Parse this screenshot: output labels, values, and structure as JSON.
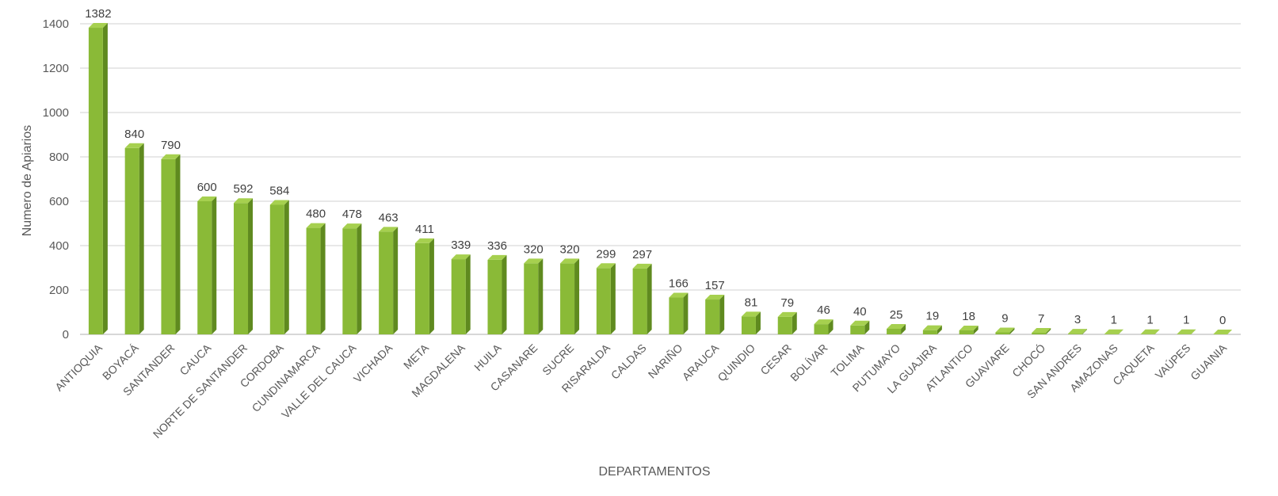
{
  "chart_data": {
    "type": "bar",
    "xlabel": "DEPARTAMENTOS",
    "ylabel": "Numero de Apiarios",
    "ylim": [
      0,
      1400
    ],
    "yticks": [
      0,
      200,
      400,
      600,
      800,
      1000,
      1200,
      1400
    ],
    "grid": true,
    "categories": [
      "ANTIOQUIA",
      "BOYACÁ",
      "SANTANDER",
      "CAUCA",
      "NORTE DE SANTANDER",
      "CORDOBA",
      "CUNDINAMARCA",
      "VALLE DEL CAUCA",
      "VICHADA",
      "META",
      "MAGDALENA",
      "HUILA",
      "CASANARE",
      "SUCRE",
      "RISARALDA",
      "CALDAS",
      "NARIÑO",
      "ARAUCA",
      "QUINDIO",
      "CESAR",
      "BOLÍVAR",
      "TOLIMA",
      "PUTUMAYO",
      "LA GUAJIRA",
      "ATLANTICO",
      "GUAVIARE",
      "CHOCÓ",
      "SAN ANDRES",
      "AMAZONAS",
      "CAQUETA",
      "VAÚPES",
      "GUAINIA"
    ],
    "values": [
      1382,
      840,
      790,
      600,
      592,
      584,
      480,
      478,
      463,
      411,
      339,
      336,
      320,
      320,
      299,
      297,
      166,
      157,
      81,
      79,
      46,
      40,
      25,
      19,
      18,
      9,
      7,
      3,
      1,
      1,
      1,
      0
    ],
    "bar_color": "#8aba37",
    "bar_side_color": "#5f8a1f",
    "bar_top_color": "#a6d04f"
  }
}
